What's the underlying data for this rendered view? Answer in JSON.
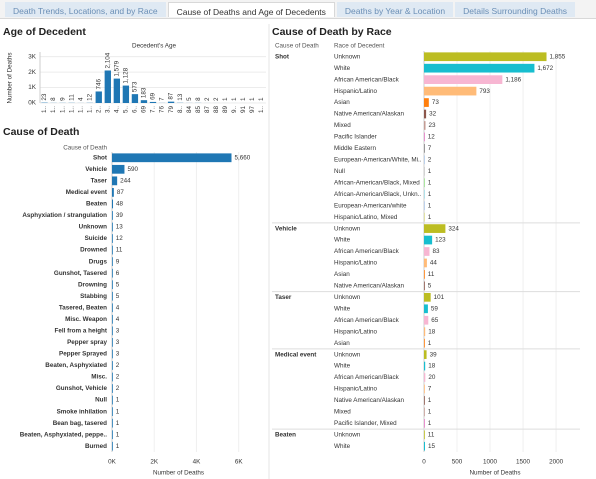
{
  "tabs": [
    {
      "label": "Death Trends, Locations, and by Race",
      "active": false
    },
    {
      "label": "Cause of Deaths and Age of Decedents",
      "active": true
    },
    {
      "label": "Deaths by Year & Location",
      "active": false
    },
    {
      "label": "Details Surrounding Deaths",
      "active": false
    }
  ],
  "chart_data": [
    {
      "type": "column",
      "title": "Age of Decedent",
      "subtitle": "Decedent's Age",
      "y_label": "Number of Deaths",
      "color": "#1f77b4",
      "categories": [
        "1..",
        "1..",
        "1..",
        "1..",
        "1..",
        "1..",
        "2..",
        "3..",
        "4..",
        "5..",
        "6..",
        "69",
        "7..",
        "76",
        "79",
        "8..",
        "84",
        "85",
        "87",
        "88",
        "89",
        "9..",
        "91",
        "97",
        "1.."
      ],
      "values": [
        23,
        8,
        9,
        11,
        4,
        12,
        746,
        2104,
        1579,
        1128,
        573,
        183,
        69,
        7,
        87,
        13,
        5,
        8,
        2,
        2,
        1,
        1,
        1,
        1,
        1
      ],
      "value_labels": [
        "23",
        "8",
        "9",
        "11",
        "4",
        "12",
        "746",
        "2,104",
        "1,579",
        "1,128",
        "573",
        "183",
        "69",
        "7",
        "87",
        "13",
        "5",
        "8",
        "2",
        "2",
        "1",
        "1",
        "1",
        "1",
        "1"
      ],
      "ylim": [
        0,
        3300
      ],
      "yticks": [
        {
          "value": 0,
          "label": "0K"
        },
        {
          "value": 1000,
          "label": "1K"
        },
        {
          "value": 2000,
          "label": "2K"
        },
        {
          "value": 3000,
          "label": "3K"
        }
      ]
    },
    {
      "type": "hbar",
      "title": "Cause of Death",
      "column_header": "Cause of Death",
      "x_label": "Number of Deaths",
      "color": "#1f77b4",
      "categories": [
        "Shot",
        "Vehicle",
        "Taser",
        "Medical event",
        "Beaten",
        "Asphyxiation / strangulation",
        "Unknown",
        "Suicide",
        "Drowned",
        "Drugs",
        "Gunshot, Tasered",
        "Drowning",
        "Stabbing",
        "Tasered, Beaten",
        "Misc. Weapon",
        "Fell from a height",
        "Pepper spray",
        "Pepper Sprayed",
        "Beaten, Asphyxiated",
        "Misc.",
        "Gunshot, Vehicle",
        "Null",
        "Smoke inhilation",
        "Bean bag, tasered",
        "Beaten, Asphyxiated, peppe..",
        "Burned"
      ],
      "values": [
        5660,
        590,
        244,
        87,
        48,
        39,
        13,
        12,
        11,
        9,
        6,
        5,
        5,
        4,
        4,
        3,
        3,
        3,
        2,
        2,
        2,
        1,
        1,
        1,
        1,
        1
      ],
      "value_labels": [
        "5,660",
        "590",
        "244",
        "87",
        "48",
        "39",
        "13",
        "12",
        "11",
        "9",
        "6",
        "5",
        "5",
        "4",
        "4",
        "3",
        "3",
        "3",
        "2",
        "2",
        "2",
        "1",
        "1",
        "1",
        "1",
        "1"
      ],
      "xlim": [
        0,
        6300
      ],
      "xticks": [
        {
          "value": 0,
          "label": "0K"
        },
        {
          "value": 2000,
          "label": "2K"
        },
        {
          "value": 4000,
          "label": "4K"
        },
        {
          "value": 6000,
          "label": "6K"
        }
      ]
    },
    {
      "type": "grouped_hbar",
      "title": "Cause of Death by Race",
      "column_headers": [
        "Cause of Death",
        "Race of Decedent"
      ],
      "x_label": "Number of Deaths",
      "groups": [
        {
          "name": "Shot",
          "categories": [
            "Unknown",
            "White",
            "African American/Black",
            "Hispanic/Latino",
            "Asian",
            "Native American/Alaskan",
            "Mixed",
            "Pacific Islander",
            "Middle Eastern",
            "European-American/White, Mi..",
            "Null",
            "African-American/Black, Mixed",
            "African-American/Black, Unkn..",
            "European-American/white",
            "Hispanic/Latino, Mixed"
          ],
          "values": [
            1855,
            1672,
            1186,
            793,
            73,
            32,
            23,
            12,
            7,
            2,
            1,
            1,
            1,
            1,
            1
          ],
          "value_labels": [
            "1,855",
            "1,672",
            "1,186",
            "793",
            "73",
            "32",
            "23",
            "12",
            "7",
            "2",
            "1",
            "1",
            "1",
            "1",
            "1"
          ],
          "colors": [
            "#bcbd22",
            "#17becf",
            "#f7b6d2",
            "#ffbb78",
            "#ff7f0e",
            "#8c564b",
            "#c49c94",
            "#e377c2",
            "#7f7f7f",
            "#aec7e8",
            "#c7c7c7",
            "#98df8a",
            "#9edae5",
            "#aec7e8",
            "#dbdb8d"
          ]
        },
        {
          "name": "Vehicle",
          "categories": [
            "Unknown",
            "White",
            "African American/Black",
            "Hispanic/Latino",
            "Asian",
            "Native American/Alaskan"
          ],
          "values": [
            324,
            123,
            83,
            44,
            11,
            5
          ],
          "colors": [
            "#bcbd22",
            "#17becf",
            "#f7b6d2",
            "#ffbb78",
            "#ff7f0e",
            "#8c564b"
          ]
        },
        {
          "name": "Taser",
          "categories": [
            "Unknown",
            "White",
            "African American/Black",
            "Hispanic/Latino",
            "Asian"
          ],
          "values": [
            101,
            59,
            65,
            18,
            1
          ],
          "colors": [
            "#bcbd22",
            "#17becf",
            "#f7b6d2",
            "#ffbb78",
            "#ff7f0e"
          ]
        },
        {
          "name": "Medical event",
          "categories": [
            "Unknown",
            "White",
            "African American/Black",
            "Hispanic/Latino",
            "Native American/Alaskan",
            "Mixed",
            "Pacific Islander, Mixed"
          ],
          "values": [
            39,
            18,
            20,
            7,
            1,
            1,
            1
          ],
          "colors": [
            "#bcbd22",
            "#17becf",
            "#f7b6d2",
            "#ffbb78",
            "#8c564b",
            "#c49c94",
            "#e377c2"
          ]
        },
        {
          "name": "Beaten",
          "categories": [
            "Unknown",
            "White"
          ],
          "values": [
            11,
            15
          ],
          "colors": [
            "#bcbd22",
            "#17becf"
          ]
        }
      ],
      "xlim": [
        0,
        2150
      ],
      "xticks": [
        0,
        500,
        1000,
        1500,
        2000
      ]
    }
  ]
}
